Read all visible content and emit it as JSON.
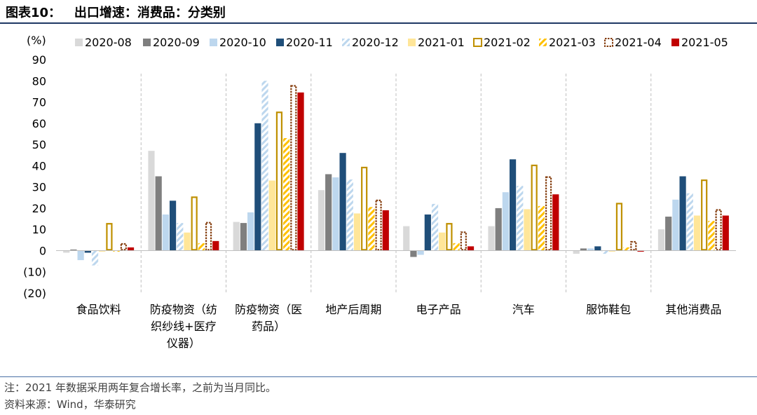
{
  "header": {
    "title": "图表10：   出口增速：消费品：分类别"
  },
  "footer": {
    "note": "注：2021 年数据采用两年复合增长率，之前为当月同比。",
    "source": "资料来源：Wind，华泰研究"
  },
  "colors": {
    "header_rule": "#1f3864",
    "series": [
      "#d9d9d9",
      "#7f7f7f",
      "#bdd7ee",
      "#1f4e79",
      "#bdd7ee",
      "#ffe699",
      "#bf9000",
      "#ffc000",
      "#843c0c",
      "#c00000"
    ]
  },
  "chart_data": {
    "type": "bar",
    "yunit": "(%)",
    "ylim": [
      -20,
      90
    ],
    "yticks": [
      "(20)",
      "(10)",
      "0",
      "10",
      "20",
      "30",
      "40",
      "50",
      "60",
      "70",
      "80",
      "90"
    ],
    "grid": false,
    "legend_position": "top",
    "categories": [
      [
        "食品饮料"
      ],
      [
        "防疫物资（纺",
        "织纱线+医疗",
        "仪器）"
      ],
      [
        "防疫物资（医",
        "药品）"
      ],
      [
        "地产后周期"
      ],
      [
        "电子产品"
      ],
      [
        "汽车"
      ],
      [
        "服饰鞋包"
      ],
      [
        "其他消费品"
      ]
    ],
    "series": [
      {
        "name": "2020-08",
        "style": "solid",
        "color": "#d9d9d9",
        "values": [
          -1,
          47,
          13.5,
          28.5,
          11.5,
          11.5,
          -1.5,
          10
        ]
      },
      {
        "name": "2020-09",
        "style": "solid",
        "color": "#7f7f7f",
        "values": [
          0.5,
          35,
          13,
          36,
          -3,
          20,
          1,
          16
        ]
      },
      {
        "name": "2020-10",
        "style": "solid",
        "color": "#bdd7ee",
        "values": [
          -4.5,
          17,
          18,
          34.5,
          -2,
          27.5,
          1,
          24
        ]
      },
      {
        "name": "2020-11",
        "style": "solid",
        "color": "#1f4e79",
        "values": [
          -1,
          23.5,
          60,
          46,
          17,
          43,
          2,
          35
        ]
      },
      {
        "name": "2020-12",
        "style": "hatch",
        "color": "#bdd7ee",
        "values": [
          -7,
          13,
          80,
          33.5,
          22,
          30.5,
          -1.5,
          27
        ]
      },
      {
        "name": "2021-01",
        "style": "solid",
        "color": "#ffe699",
        "values": [
          -0.5,
          8.5,
          33,
          17.5,
          8.5,
          19.5,
          -0.5,
          16.5
        ]
      },
      {
        "name": "2021-02",
        "style": "outline",
        "color": "#bf9000",
        "values": [
          13,
          25.5,
          65.5,
          39.5,
          13,
          40.5,
          22.5,
          33.5
        ]
      },
      {
        "name": "2021-03",
        "style": "hatch",
        "color": "#ffc000",
        "values": [
          -0.5,
          3.5,
          53,
          20.5,
          3.5,
          21,
          1.5,
          14
        ]
      },
      {
        "name": "2021-04",
        "style": "dotted",
        "color": "#843c0c",
        "values": [
          3.5,
          13.5,
          78,
          24,
          9,
          35,
          4.5,
          19.5
        ]
      },
      {
        "name": "2021-05",
        "style": "solid",
        "color": "#c00000",
        "values": [
          1.5,
          4.5,
          74.5,
          19,
          2,
          26.5,
          -0.5,
          16.5
        ]
      }
    ]
  }
}
